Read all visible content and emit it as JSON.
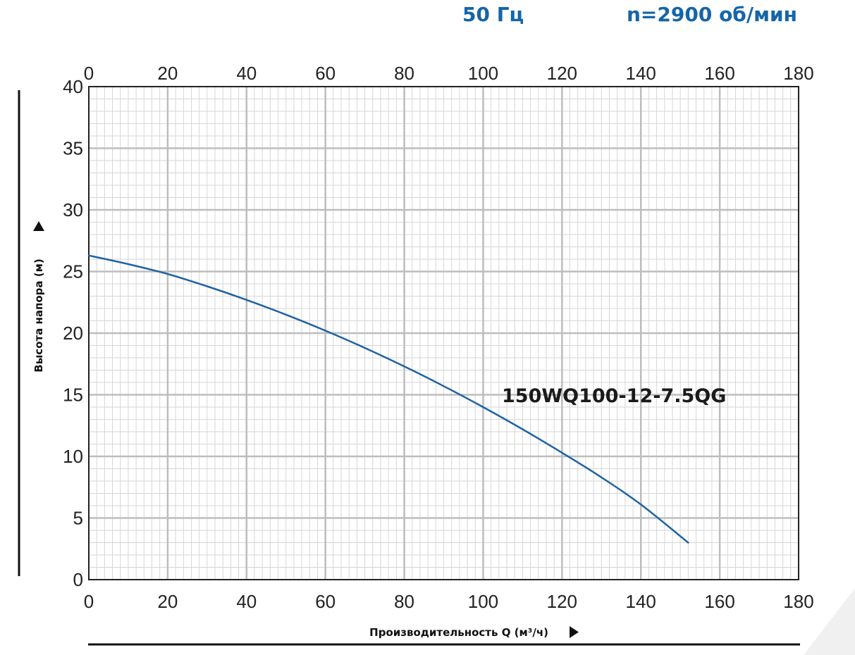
{
  "header": {
    "frequency": "50 Гц",
    "speed": "n=2900 об/мин"
  },
  "chart_data": {
    "type": "line",
    "title": "",
    "xlabel": "Производительность Q (м³/ч)",
    "ylabel": "Высота напора (м)",
    "xlim": [
      0,
      180
    ],
    "ylim": [
      0,
      40
    ],
    "x_ticks": [
      0,
      20,
      40,
      60,
      80,
      100,
      120,
      140,
      160,
      180
    ],
    "y_ticks": [
      0,
      5,
      10,
      15,
      20,
      25,
      30,
      35,
      40
    ],
    "grid": true,
    "series": [
      {
        "name": "150WQ100-12-7.5QG",
        "color": "#1f63a3",
        "x": [
          0,
          10,
          20,
          30,
          40,
          50,
          60,
          70,
          80,
          90,
          100,
          110,
          120,
          130,
          140,
          152
        ],
        "y": [
          26.3,
          25.6,
          24.8,
          23.8,
          22.7,
          21.5,
          20.2,
          18.8,
          17.3,
          15.7,
          14.0,
          12.2,
          10.3,
          8.3,
          6.1,
          3.0
        ]
      }
    ]
  }
}
